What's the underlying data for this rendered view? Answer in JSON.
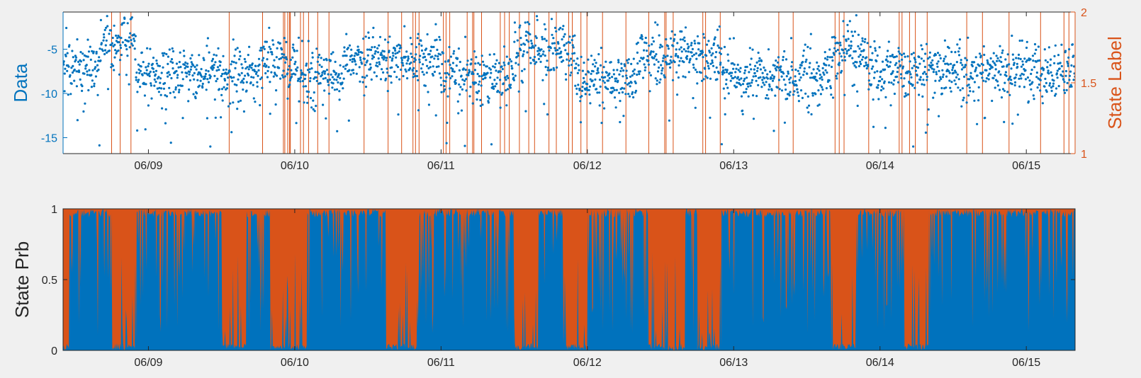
{
  "figure": {
    "background": "#f0f0f0",
    "colors": {
      "data_blue": "#0072bd",
      "state_orange": "#d95319",
      "axis_black": "#262626"
    }
  },
  "chart_data": [
    {
      "type": "scatter",
      "title": "",
      "xlabel": "",
      "ylabel": "Data",
      "ylabel_right": "State Label",
      "x_range": [
        "06/08 10:00",
        "06/15 08:00"
      ],
      "x_tick_labels": [
        "06/09",
        "06/10",
        "06/11",
        "06/12",
        "06/13",
        "06/14",
        "06/15"
      ],
      "ylim": [
        -16.8,
        -0.8
      ],
      "y_ticks": [
        -5,
        -10,
        -15
      ],
      "y_tick_labels": [
        "-5",
        "-10",
        "-15"
      ],
      "ylim_right": [
        1,
        2
      ],
      "y_ticks_right": [
        1,
        1.5,
        2
      ],
      "y_tick_labels_right": [
        "1",
        "1.5",
        "2"
      ],
      "grid": false,
      "legend": "none",
      "series": [
        {
          "role": "data points (left axis)",
          "color": "#0072bd",
          "baseline_by_segment": [
            {
              "from": "06/08 10:00",
              "to": "06/08 16:00",
              "mean": -7,
              "spread": 2.5
            },
            {
              "from": "06/08 16:00",
              "to": "06/08 22:00",
              "mean": -4,
              "spread": 2.5
            },
            {
              "from": "06/08 22:00",
              "to": "06/09 18:00",
              "mean": -8,
              "spread": 2.5
            },
            {
              "from": "06/09 18:00",
              "to": "06/10 00:00",
              "mean": -6.5,
              "spread": 2.5
            },
            {
              "from": "06/10 00:00",
              "to": "06/10 08:00",
              "mean": -8,
              "spread": 2.5
            },
            {
              "from": "06/10 08:00",
              "to": "06/11 00:00",
              "mean": -6,
              "spread": 2.5
            },
            {
              "from": "06/11 00:00",
              "to": "06/11 12:00",
              "mean": -8,
              "spread": 2.5
            },
            {
              "from": "06/11 12:00",
              "to": "06/11 22:00",
              "mean": -5,
              "spread": 2.5
            },
            {
              "from": "06/11 22:00",
              "to": "06/12 08:00",
              "mean": -8.5,
              "spread": 2.5
            },
            {
              "from": "06/12 08:00",
              "to": "06/12 22:00",
              "mean": -6,
              "spread": 2.5
            },
            {
              "from": "06/12 22:00",
              "to": "06/13 16:00",
              "mean": -8,
              "spread": 2.5
            },
            {
              "from": "06/13 16:00",
              "to": "06/13 22:00",
              "mean": -5.5,
              "spread": 2.5
            },
            {
              "from": "06/13 22:00",
              "to": "06/14 12:00",
              "mean": -7.5,
              "spread": 2.5
            },
            {
              "from": "06/14 12:00",
              "to": "06/15 08:00",
              "mean": -7.5,
              "spread": 2.5
            }
          ]
        },
        {
          "role": "state label (right axis, stairs between 1 and 2)",
          "color": "#d95319"
        }
      ]
    },
    {
      "type": "area",
      "title": "",
      "xlabel": "",
      "ylabel": "State Prb",
      "x_range": [
        "06/08 10:00",
        "06/15 08:00"
      ],
      "x_tick_labels": [
        "06/09",
        "06/10",
        "06/11",
        "06/12",
        "06/13",
        "06/14",
        "06/15"
      ],
      "ylim": [
        0,
        1
      ],
      "y_ticks": [
        0,
        0.5,
        1
      ],
      "y_tick_labels": [
        "0",
        "0.5",
        "1"
      ],
      "grid": false,
      "legend": "none",
      "series": [
        {
          "name_hint": "state 1 probability",
          "color": "#0072bd"
        },
        {
          "name_hint": "state 2 probability",
          "color": "#d95319"
        }
      ],
      "state2_dominant_intervals": [
        [
          "06/08 10:00",
          "06/08 11:00"
        ],
        [
          "06/08 18:00",
          "06/08 22:00"
        ],
        [
          "06/09 12:00",
          "06/09 16:00"
        ],
        [
          "06/09 20:00",
          "06/10 02:00"
        ],
        [
          "06/10 15:00",
          "06/10 20:00"
        ],
        [
          "06/11 12:00",
          "06/11 16:00"
        ],
        [
          "06/11 20:00",
          "06/12 00:00"
        ],
        [
          "06/12 10:00",
          "06/12 16:00"
        ],
        [
          "06/12 18:00",
          "06/12 22:00"
        ],
        [
          "06/13 16:00",
          "06/13 20:00"
        ],
        [
          "06/14 04:00",
          "06/14 08:00"
        ]
      ]
    }
  ]
}
